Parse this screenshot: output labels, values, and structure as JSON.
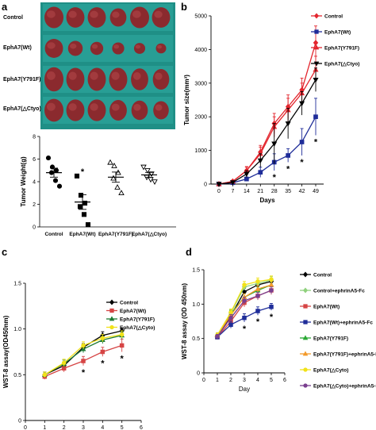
{
  "panels": {
    "a": "a",
    "b": "b",
    "c": "c",
    "d": "d"
  },
  "photo": {
    "rows": [
      "Control",
      "EphA7(Wt)",
      "EphA7(Y791F)",
      "EphA7(△Ctyo)"
    ],
    "background": "#2aa198",
    "tumor_color": "#8b2a2e",
    "tumor_counts": [
      6,
      6,
      6,
      6
    ],
    "tumor_relative_sizes": [
      [
        1.0,
        0.95,
        0.95,
        0.85,
        1.0,
        0.95
      ],
      [
        0.95,
        0.75,
        0.65,
        0.6,
        0.55,
        0.5
      ],
      [
        1.0,
        0.95,
        0.95,
        0.95,
        0.9,
        0.85
      ],
      [
        1.0,
        0.95,
        0.95,
        0.9,
        0.85,
        0.8
      ]
    ]
  },
  "chart_data": [
    {
      "panel": "a",
      "type": "scatter",
      "ylabel": "Tumor Weight(g)",
      "ylim": [
        0,
        8
      ],
      "yticks": [
        "0",
        "2",
        "4",
        "6",
        "8"
      ],
      "categories": [
        "Control",
        "EphA7(Wt)",
        "EphA7(Y791F)",
        "EphA7(△Ctyo)"
      ],
      "markers": [
        "circle",
        "square",
        "triangle",
        "triangle-down"
      ],
      "points": [
        [
          6.1,
          5.3,
          5.0,
          4.8,
          4.1,
          3.6
        ],
        [
          4.5,
          2.8,
          2.1,
          1.8,
          1.1,
          0.2
        ],
        [
          5.7,
          5.4,
          4.8,
          4.3,
          3.5,
          3.0
        ],
        [
          5.3,
          5.0,
          4.7,
          4.4,
          4.2,
          4.0
        ]
      ],
      "means": [
        4.8,
        2.2,
        4.4,
        4.6
      ],
      "sem": [
        0.4,
        0.65,
        0.45,
        0.22
      ],
      "significance": [
        "",
        "*",
        "",
        ""
      ]
    },
    {
      "panel": "b",
      "type": "line",
      "xlabel": "Days",
      "ylabel": "Tumor size(mm³)",
      "x": [
        0,
        7,
        14,
        21,
        28,
        35,
        42,
        49
      ],
      "xticks": [
        "0",
        "7",
        "14",
        "21",
        "28",
        "35",
        "42",
        "49"
      ],
      "ylim": [
        0,
        5000
      ],
      "yticks": [
        "0",
        "1000",
        "2000",
        "3000",
        "4000",
        "5000"
      ],
      "legend_position": "top-right",
      "series": [
        {
          "name": "Control",
          "color": "#e3262e",
          "marker": "diamond",
          "values": [
            0,
            80,
            400,
            950,
            1800,
            2300,
            2800,
            4200
          ],
          "err": [
            0,
            40,
            120,
            200,
            300,
            350,
            350,
            500
          ]
        },
        {
          "name": "EphA7(Wt)",
          "color": "#1f2d99",
          "marker": "square",
          "values": [
            0,
            40,
            150,
            350,
            650,
            850,
            1250,
            2000
          ],
          "err": [
            0,
            20,
            60,
            150,
            250,
            200,
            400,
            550
          ]
        },
        {
          "name": "EphA7(Y791F)",
          "color": "#e3262e",
          "marker": "triangle",
          "values": [
            0,
            80,
            400,
            900,
            1700,
            2200,
            2700,
            3400
          ],
          "err": [
            0,
            40,
            100,
            200,
            300,
            350,
            300,
            400
          ]
        },
        {
          "name": "EphA7(△Ctyo)",
          "color": "#000000",
          "marker": "triangle-down",
          "values": [
            0,
            50,
            300,
            700,
            1200,
            1800,
            2400,
            3100
          ],
          "err": [
            0,
            30,
            100,
            200,
            600,
            450,
            350,
            350
          ]
        }
      ],
      "significance_x": [
        28,
        35,
        42,
        49
      ],
      "significance": [
        "*",
        "*",
        "*",
        "*"
      ]
    },
    {
      "panel": "c",
      "type": "line",
      "xlabel": "Day",
      "ylabel": "WST-8 assay(OD450nm)",
      "x": [
        1,
        2,
        3,
        4,
        5
      ],
      "xlim": [
        0,
        6
      ],
      "xticks": [
        "0",
        "1",
        "2",
        "3",
        "4",
        "5",
        "6"
      ],
      "ylim": [
        0,
        1.5
      ],
      "yticks": [
        "0",
        "0.5",
        "1.0",
        "1.5"
      ],
      "legend_position": "top-right",
      "series": [
        {
          "name": "Control",
          "color": "#000000",
          "marker": "diamond",
          "values": [
            0.5,
            0.6,
            0.8,
            0.93,
            0.98
          ],
          "err": [
            0.03,
            0.04,
            0.04,
            0.04,
            0.03
          ]
        },
        {
          "name": "EphA7(Wt)",
          "color": "#d64545",
          "marker": "square",
          "values": [
            0.48,
            0.57,
            0.65,
            0.75,
            0.82
          ],
          "err": [
            0.03,
            0.04,
            0.05,
            0.05,
            0.07
          ]
        },
        {
          "name": "EphA7(Y791F)",
          "color": "#1e7b34",
          "marker": "triangle",
          "values": [
            0.5,
            0.62,
            0.78,
            0.88,
            0.93
          ],
          "err": [
            0.03,
            0.04,
            0.04,
            0.04,
            0.04
          ]
        },
        {
          "name": "EphA7(△Cyto)",
          "color": "#f1e21a",
          "marker": "circle",
          "values": [
            0.5,
            0.63,
            0.82,
            0.9,
            0.94
          ],
          "err": [
            0.03,
            0.04,
            0.04,
            0.04,
            0.04
          ]
        }
      ],
      "significance_x": [
        3,
        4,
        5
      ],
      "significance": [
        "*",
        "*",
        "*"
      ]
    },
    {
      "panel": "d",
      "type": "line",
      "xlabel": "Day",
      "ylabel": "WST-8 assay (OD 450nm)",
      "x": [
        1,
        2,
        3,
        4,
        5
      ],
      "xlim": [
        0,
        6
      ],
      "xticks": [
        "0",
        "1",
        "2",
        "3",
        "4",
        "5",
        "6"
      ],
      "ylim": [
        0,
        1.5
      ],
      "yticks": [
        "0",
        "0.5",
        "1.0",
        "1.5"
      ],
      "legend_position": "right",
      "series": [
        {
          "name": "Control",
          "color": "#000000",
          "marker": "diamond",
          "values": [
            0.53,
            0.83,
            1.18,
            1.28,
            1.33
          ],
          "err": [
            0.03,
            0.05,
            0.05,
            0.05,
            0.04
          ]
        },
        {
          "name": "Control+ephrinA5-Fc",
          "color": "#8fd17d",
          "marker": "diamond",
          "values": [
            0.55,
            0.87,
            1.25,
            1.3,
            1.35
          ],
          "err": [
            0.03,
            0.05,
            0.05,
            0.05,
            0.05
          ]
        },
        {
          "name": "EphA7(Wt)",
          "color": "#d64545",
          "marker": "square",
          "values": [
            0.52,
            0.75,
            1.02,
            1.12,
            1.2
          ],
          "err": [
            0.03,
            0.05,
            0.06,
            0.06,
            0.06
          ]
        },
        {
          "name": "EphA7(Wt)+ephrinA5-Fc",
          "color": "#1f2d99",
          "marker": "square",
          "values": [
            0.52,
            0.7,
            0.8,
            0.9,
            0.96
          ],
          "err": [
            0.03,
            0.05,
            0.06,
            0.06,
            0.05
          ]
        },
        {
          "name": "EphA7(Y791F)",
          "color": "#2aa834",
          "marker": "triangle",
          "values": [
            0.55,
            0.86,
            1.1,
            1.2,
            1.28
          ],
          "err": [
            0.03,
            0.05,
            0.05,
            0.05,
            0.05
          ]
        },
        {
          "name": "EphA7(Y791F)+ephrinA5-Fc",
          "color": "#f39a2b",
          "marker": "triangle",
          "values": [
            0.55,
            0.84,
            1.1,
            1.22,
            1.28
          ],
          "err": [
            0.03,
            0.05,
            0.05,
            0.05,
            0.05
          ]
        },
        {
          "name": "EphA7(△Cyto)",
          "color": "#f1e21a",
          "marker": "circle",
          "values": [
            0.55,
            0.88,
            1.28,
            1.33,
            1.36
          ],
          "err": [
            0.03,
            0.05,
            0.05,
            0.05,
            0.05
          ]
        },
        {
          "name": "EphA7(△Cyto)+ephrinA5-Fc",
          "color": "#7a3f8f",
          "marker": "circle",
          "values": [
            0.53,
            0.8,
            1.05,
            1.12,
            1.2
          ],
          "err": [
            0.03,
            0.05,
            0.05,
            0.05,
            0.05
          ]
        }
      ],
      "significance_x": [
        3,
        4,
        5
      ],
      "significance": [
        "*",
        "*",
        "*"
      ]
    }
  ]
}
